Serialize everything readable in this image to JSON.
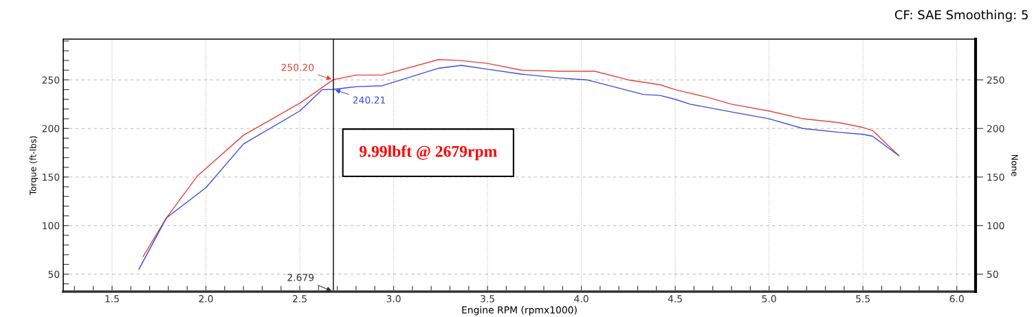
{
  "chart_data": {
    "type": "line",
    "subtitle": "CF: SAE Smoothing: 5",
    "xlabel": "Engine RPM (rpmx1000)",
    "ylabel": "Torque (ft-lbs)",
    "y2label": "None",
    "series": [
      {
        "color": "#e8413c",
        "x": [
          1.665,
          1.79,
          1.954,
          2.2,
          2.5,
          2.679,
          2.8,
          2.94,
          3.24,
          3.35,
          3.5,
          3.68,
          3.88,
          4.07,
          4.25,
          4.419,
          4.5,
          4.673,
          4.8,
          5.0,
          5.18,
          5.373,
          5.5,
          5.551,
          5.691
        ],
        "values": [
          68,
          108,
          151,
          193,
          226,
          250.2,
          255,
          255,
          271,
          270,
          267,
          260,
          259,
          259,
          250,
          245,
          240,
          232,
          225,
          218,
          210,
          206,
          201,
          198,
          172
        ]
      },
      {
        "color": "#3c4ce0",
        "x": [
          1.643,
          1.79,
          2.0,
          2.2,
          2.5,
          2.62,
          2.679,
          2.8,
          2.94,
          3.24,
          3.36,
          3.5,
          3.68,
          3.88,
          4.03,
          4.33,
          4.42,
          4.5,
          4.58,
          4.8,
          5.0,
          5.18,
          5.373,
          5.5,
          5.551,
          5.691
        ],
        "values": [
          55,
          108,
          139,
          184,
          218,
          240,
          240.21,
          243,
          244,
          262,
          265,
          261,
          256,
          252,
          250,
          235,
          234,
          230,
          225,
          217,
          210,
          200,
          196,
          194,
          192,
          172
        ]
      }
    ],
    "xlim": [
      1.24,
      6.1
    ],
    "ylim": [
      32,
      292
    ],
    "y2lim": [
      32,
      292
    ],
    "xticks": [
      {
        "value": 1.3,
        "label": null
      },
      {
        "value": 1.4,
        "label": null
      },
      1.5,
      {
        "value": 1.6,
        "label": null
      },
      {
        "value": 1.7,
        "label": null
      },
      {
        "value": 1.8,
        "label": null
      },
      {
        "value": 1.9,
        "label": null
      },
      {
        "value": 2,
        "label": "2.0"
      },
      {
        "value": 2.1,
        "label": null
      },
      {
        "value": 2.2,
        "label": null
      },
      {
        "value": 2.3,
        "label": null
      },
      {
        "value": 2.4,
        "label": null
      },
      2.5,
      {
        "value": 2.6,
        "label": null
      },
      {
        "value": 2.7,
        "label": null
      },
      {
        "value": 2.8,
        "label": null
      },
      {
        "value": 2.9,
        "label": null
      },
      {
        "value": 3,
        "label": "3.0"
      },
      {
        "value": 3.1,
        "label": null
      },
      {
        "value": 3.2,
        "label": null
      },
      {
        "value": 3.3,
        "label": null
      },
      {
        "value": 3.4,
        "label": null
      },
      3.5,
      {
        "value": 3.6,
        "label": null
      },
      {
        "value": 3.7,
        "label": null
      },
      {
        "value": 3.8,
        "label": null
      },
      {
        "value": 3.9,
        "label": null
      },
      {
        "value": 4,
        "label": "4.0"
      },
      {
        "value": 4.1,
        "label": null
      },
      {
        "value": 4.2,
        "label": null
      },
      {
        "value": 4.3,
        "label": null
      },
      {
        "value": 4.4,
        "label": null
      },
      4.5,
      {
        "value": 4.6,
        "label": null
      },
      {
        "value": 4.7,
        "label": null
      },
      {
        "value": 4.8,
        "label": null
      },
      {
        "value": 4.9,
        "label": null
      },
      {
        "value": 5,
        "label": "5.0"
      },
      {
        "value": 5.1,
        "label": null
      },
      {
        "value": 5.2,
        "label": null
      },
      {
        "value": 5.3,
        "label": null
      },
      {
        "value": 5.4,
        "label": null
      },
      5.5,
      {
        "value": 5.6,
        "label": null
      },
      {
        "value": 5.7,
        "label": null
      },
      {
        "value": 5.8,
        "label": null
      },
      {
        "value": 5.9,
        "label": null
      },
      {
        "value": 6,
        "label": "6.0"
      }
    ],
    "yticks": [
      {
        "value": 40,
        "label": null
      },
      50,
      {
        "value": 60,
        "label": null
      },
      {
        "value": 70,
        "label": null
      },
      {
        "value": 80,
        "label": null
      },
      {
        "value": 90,
        "label": null
      },
      100,
      {
        "value": 110,
        "label": null
      },
      {
        "value": 120,
        "label": null
      },
      {
        "value": 130,
        "label": null
      },
      {
        "value": 140,
        "label": null
      },
      150,
      {
        "value": 160,
        "label": null
      },
      {
        "value": 170,
        "label": null
      },
      {
        "value": 180,
        "label": null
      },
      {
        "value": 190,
        "label": null
      },
      200,
      {
        "value": 210,
        "label": null
      },
      {
        "value": 220,
        "label": null
      },
      {
        "value": 230,
        "label": null
      },
      {
        "value": 240,
        "label": null
      },
      250,
      {
        "value": 260,
        "label": null
      },
      {
        "value": 270,
        "label": null
      },
      {
        "value": 280,
        "label": null
      },
      {
        "value": 290,
        "label": null
      }
    ],
    "y2ticks": [
      50,
      100,
      150,
      200,
      250
    ],
    "grid": true,
    "ref_lines": [
      {
        "axis": "x",
        "value": 2.679,
        "label": "2.679",
        "color": "#000000"
      }
    ],
    "annotations": [
      {
        "text": "250.20",
        "x": 2.679,
        "y": 250.2
      },
      {
        "text": "240.21",
        "x": 2.679,
        "y": 240.21
      },
      "9.99lbft @ 2679rpm"
    ]
  }
}
